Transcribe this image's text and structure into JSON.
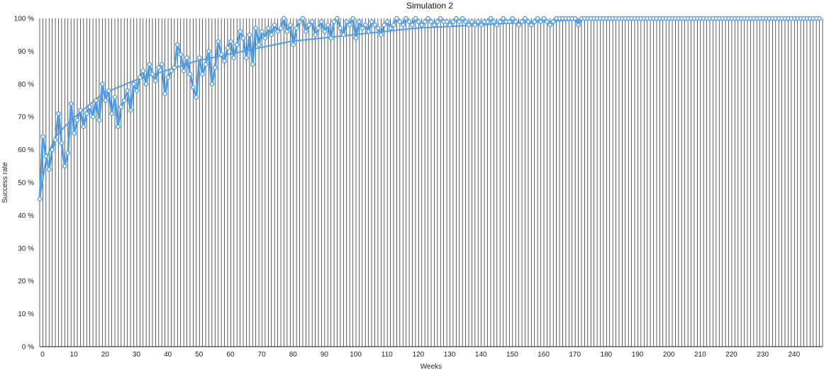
{
  "chart_data": {
    "type": "line",
    "title": "Simulation 2",
    "xlabel": "Weeks",
    "ylabel": "Success rate",
    "xlim": [
      0,
      250
    ],
    "ylim": [
      0,
      100
    ],
    "x_ticks": [
      0,
      10,
      20,
      30,
      40,
      50,
      60,
      70,
      80,
      90,
      100,
      110,
      120,
      130,
      140,
      150,
      160,
      170,
      180,
      190,
      200,
      210,
      220,
      230,
      240
    ],
    "y_ticks": [
      "0 %",
      "10 %",
      "20 %",
      "30 %",
      "40 %",
      "50 %",
      "60 %",
      "70 %",
      "80 %",
      "90 %",
      "100 %"
    ],
    "grid": "vertical lines at every week",
    "series_color": "#4a9ff5",
    "series": [
      {
        "values": [
          [
            0,
            45
          ],
          [
            1,
            64
          ],
          [
            2,
            58
          ],
          [
            3,
            54
          ],
          [
            4,
            60
          ],
          [
            5,
            63
          ],
          [
            6,
            71
          ],
          [
            7,
            62
          ],
          [
            8,
            55
          ],
          [
            9,
            59
          ],
          [
            10,
            74
          ],
          [
            11,
            65
          ],
          [
            12,
            69
          ],
          [
            13,
            72
          ],
          [
            14,
            67
          ],
          [
            15,
            71
          ],
          [
            16,
            73
          ],
          [
            17,
            70
          ],
          [
            18,
            75
          ],
          [
            19,
            69
          ],
          [
            20,
            80
          ],
          [
            21,
            75
          ],
          [
            22,
            78
          ],
          [
            23,
            71
          ],
          [
            24,
            76
          ],
          [
            25,
            67
          ],
          [
            26,
            73
          ],
          [
            27,
            75
          ],
          [
            28,
            78
          ],
          [
            29,
            72
          ],
          [
            30,
            80
          ],
          [
            31,
            78
          ],
          [
            32,
            82
          ],
          [
            33,
            84
          ],
          [
            34,
            80
          ],
          [
            35,
            86
          ],
          [
            36,
            83
          ],
          [
            37,
            81
          ],
          [
            38,
            85
          ],
          [
            39,
            86
          ],
          [
            40,
            77
          ],
          [
            41,
            82
          ],
          [
            42,
            84
          ],
          [
            43,
            85
          ],
          [
            44,
            92
          ],
          [
            45,
            89
          ],
          [
            46,
            84
          ],
          [
            47,
            88
          ],
          [
            48,
            83
          ],
          [
            49,
            79
          ],
          [
            50,
            76
          ],
          [
            51,
            88
          ],
          [
            52,
            83
          ],
          [
            53,
            86
          ],
          [
            54,
            90
          ],
          [
            55,
            80
          ],
          [
            56,
            85
          ],
          [
            57,
            93
          ],
          [
            58,
            89
          ],
          [
            59,
            87
          ],
          [
            60,
            91
          ],
          [
            61,
            93
          ],
          [
            62,
            88
          ],
          [
            63,
            92
          ],
          [
            64,
            96
          ],
          [
            65,
            94
          ],
          [
            66,
            88
          ],
          [
            67,
            95
          ],
          [
            68,
            86
          ],
          [
            69,
            97
          ],
          [
            70,
            92
          ],
          [
            71,
            96
          ],
          [
            72,
            94
          ],
          [
            73,
            97
          ],
          [
            74,
            95
          ],
          [
            75,
            98
          ],
          [
            76,
            96
          ],
          [
            77,
            97
          ],
          [
            78,
            100
          ],
          [
            79,
            96
          ],
          [
            80,
            98
          ],
          [
            81,
            92
          ],
          [
            82,
            97
          ],
          [
            83,
            99
          ],
          [
            84,
            100
          ],
          [
            85,
            96
          ],
          [
            86,
            98
          ],
          [
            87,
            99
          ],
          [
            88,
            95
          ],
          [
            89,
            97
          ],
          [
            90,
            99
          ],
          [
            91,
            96
          ],
          [
            92,
            98
          ],
          [
            93,
            94
          ],
          [
            94,
            99
          ],
          [
            95,
            100
          ],
          [
            96,
            97
          ],
          [
            97,
            95
          ],
          [
            98,
            99
          ],
          [
            99,
            98
          ],
          [
            100,
            100
          ],
          [
            101,
            94
          ],
          [
            102,
            99
          ],
          [
            103,
            97
          ],
          [
            104,
            98
          ],
          [
            105,
            96
          ],
          [
            106,
            99
          ],
          [
            107,
            98
          ],
          [
            108,
            97
          ],
          [
            109,
            95
          ],
          [
            110,
            98
          ],
          [
            111,
            99
          ],
          [
            112,
            97
          ],
          [
            113,
            98
          ],
          [
            114,
            100
          ],
          [
            115,
            99
          ],
          [
            116,
            98
          ],
          [
            117,
            100
          ],
          [
            118,
            99
          ],
          [
            119,
            98
          ],
          [
            120,
            100
          ],
          [
            121,
            99
          ],
          [
            122,
            98
          ],
          [
            123,
            99
          ],
          [
            124,
            100
          ],
          [
            125,
            99
          ],
          [
            126,
            98
          ],
          [
            127,
            99
          ],
          [
            128,
            100
          ],
          [
            129,
            99
          ],
          [
            130,
            99
          ],
          [
            131,
            98
          ],
          [
            132,
            99
          ],
          [
            133,
            100
          ],
          [
            134,
            99
          ],
          [
            135,
            100
          ],
          [
            136,
            99
          ],
          [
            137,
            98
          ],
          [
            138,
            99
          ],
          [
            139,
            98
          ],
          [
            140,
            99
          ],
          [
            141,
            98
          ],
          [
            142,
            99
          ],
          [
            143,
            99
          ],
          [
            144,
            100
          ],
          [
            145,
            99
          ],
          [
            146,
            98
          ],
          [
            147,
            99
          ],
          [
            148,
            100
          ],
          [
            149,
            99
          ],
          [
            150,
            99
          ],
          [
            151,
            100
          ],
          [
            152,
            99
          ],
          [
            153,
            98
          ],
          [
            154,
            99
          ],
          [
            155,
            100
          ],
          [
            156,
            99
          ],
          [
            157,
            98
          ],
          [
            158,
            99
          ],
          [
            159,
            100
          ],
          [
            160,
            99
          ],
          [
            161,
            100
          ],
          [
            162,
            99
          ],
          [
            163,
            98
          ],
          [
            164,
            99
          ],
          [
            165,
            100
          ],
          [
            166,
            100
          ],
          [
            167,
            100
          ],
          [
            168,
            100
          ],
          [
            169,
            100
          ],
          [
            170,
            100
          ],
          [
            171,
            100
          ],
          [
            172,
            98
          ],
          [
            173,
            100
          ],
          [
            174,
            100
          ],
          [
            175,
            100
          ],
          [
            176,
            100
          ],
          [
            177,
            100
          ],
          [
            178,
            100
          ],
          [
            179,
            100
          ],
          [
            180,
            100
          ],
          [
            181,
            100
          ],
          [
            182,
            100
          ],
          [
            183,
            100
          ],
          [
            184,
            100
          ],
          [
            185,
            100
          ],
          [
            186,
            100
          ],
          [
            187,
            100
          ],
          [
            188,
            100
          ],
          [
            189,
            100
          ],
          [
            190,
            100
          ],
          [
            191,
            100
          ],
          [
            192,
            100
          ],
          [
            193,
            100
          ],
          [
            194,
            100
          ],
          [
            195,
            100
          ],
          [
            196,
            100
          ],
          [
            197,
            100
          ],
          [
            198,
            100
          ],
          [
            199,
            100
          ],
          [
            200,
            100
          ],
          [
            201,
            100
          ],
          [
            202,
            100
          ],
          [
            203,
            100
          ],
          [
            204,
            100
          ],
          [
            205,
            100
          ],
          [
            206,
            100
          ],
          [
            207,
            100
          ],
          [
            208,
            100
          ],
          [
            209,
            100
          ],
          [
            210,
            100
          ],
          [
            211,
            100
          ],
          [
            212,
            100
          ],
          [
            213,
            100
          ],
          [
            214,
            100
          ],
          [
            215,
            100
          ],
          [
            216,
            100
          ],
          [
            217,
            100
          ],
          [
            218,
            100
          ],
          [
            219,
            100
          ],
          [
            220,
            100
          ],
          [
            221,
            100
          ],
          [
            222,
            100
          ],
          [
            223,
            100
          ],
          [
            224,
            100
          ],
          [
            225,
            100
          ],
          [
            226,
            100
          ],
          [
            227,
            100
          ],
          [
            228,
            100
          ],
          [
            229,
            100
          ],
          [
            230,
            100
          ],
          [
            231,
            100
          ],
          [
            232,
            100
          ],
          [
            233,
            100
          ],
          [
            234,
            100
          ],
          [
            235,
            100
          ],
          [
            236,
            100
          ],
          [
            237,
            100
          ],
          [
            238,
            100
          ],
          [
            239,
            100
          ],
          [
            240,
            100
          ],
          [
            241,
            100
          ],
          [
            242,
            100
          ],
          [
            243,
            100
          ],
          [
            244,
            100
          ],
          [
            245,
            100
          ],
          [
            246,
            100
          ],
          [
            247,
            100
          ],
          [
            248,
            100
          ],
          [
            249,
            100
          ]
        ]
      }
    ],
    "trendline": {
      "type": "logarithmic",
      "points": [
        [
          0,
          45
        ],
        [
          2,
          57
        ],
        [
          5,
          64
        ],
        [
          10,
          69
        ],
        [
          20,
          77
        ],
        [
          30,
          81
        ],
        [
          40,
          84
        ],
        [
          50,
          87
        ],
        [
          60,
          89
        ],
        [
          80,
          93
        ],
        [
          100,
          95
        ],
        [
          120,
          97
        ],
        [
          140,
          98
        ],
        [
          160,
          99
        ],
        [
          180,
          100
        ],
        [
          249,
          100
        ]
      ]
    }
  }
}
